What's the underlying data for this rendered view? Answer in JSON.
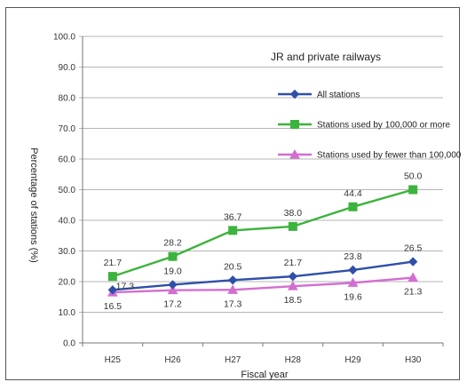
{
  "chart_data": {
    "type": "line",
    "title": "JR and private railways",
    "xlabel": "Fiscal year",
    "ylabel": "Percentage of stations (%)",
    "categories": [
      "H25",
      "H26",
      "H27",
      "H28",
      "H29",
      "H30"
    ],
    "ylim": [
      0,
      100
    ],
    "yticks": [
      "0.0",
      "10.0",
      "20.0",
      "30.0",
      "40.0",
      "50.0",
      "60.0",
      "70.0",
      "80.0",
      "90.0",
      "100.0"
    ],
    "grid": true,
    "legend_position": "top-right",
    "series": [
      {
        "name": "All stations",
        "color": "#2f4fa8",
        "marker": "diamond",
        "values": [
          17.3,
          19.0,
          20.5,
          21.7,
          23.8,
          26.5
        ],
        "labels": [
          "17.3",
          "19.0",
          "20.5",
          "21.7",
          "23.8",
          "26.5"
        ]
      },
      {
        "name": "Stations used by 100,000 or more",
        "color": "#3cb33c",
        "marker": "square",
        "values": [
          21.7,
          28.2,
          36.7,
          38.0,
          44.4,
          50.0
        ],
        "labels": [
          "21.7",
          "28.2",
          "36.7",
          "38.0",
          "44.4",
          "50.0"
        ]
      },
      {
        "name": "Stations used by fewer than 100,000",
        "color": "#d36ed0",
        "marker": "triangle",
        "values": [
          16.5,
          17.2,
          17.3,
          18.5,
          19.6,
          21.3
        ],
        "labels": [
          "16.5",
          "17.2",
          "17.3",
          "18.5",
          "19.6",
          "21.3"
        ]
      }
    ]
  }
}
